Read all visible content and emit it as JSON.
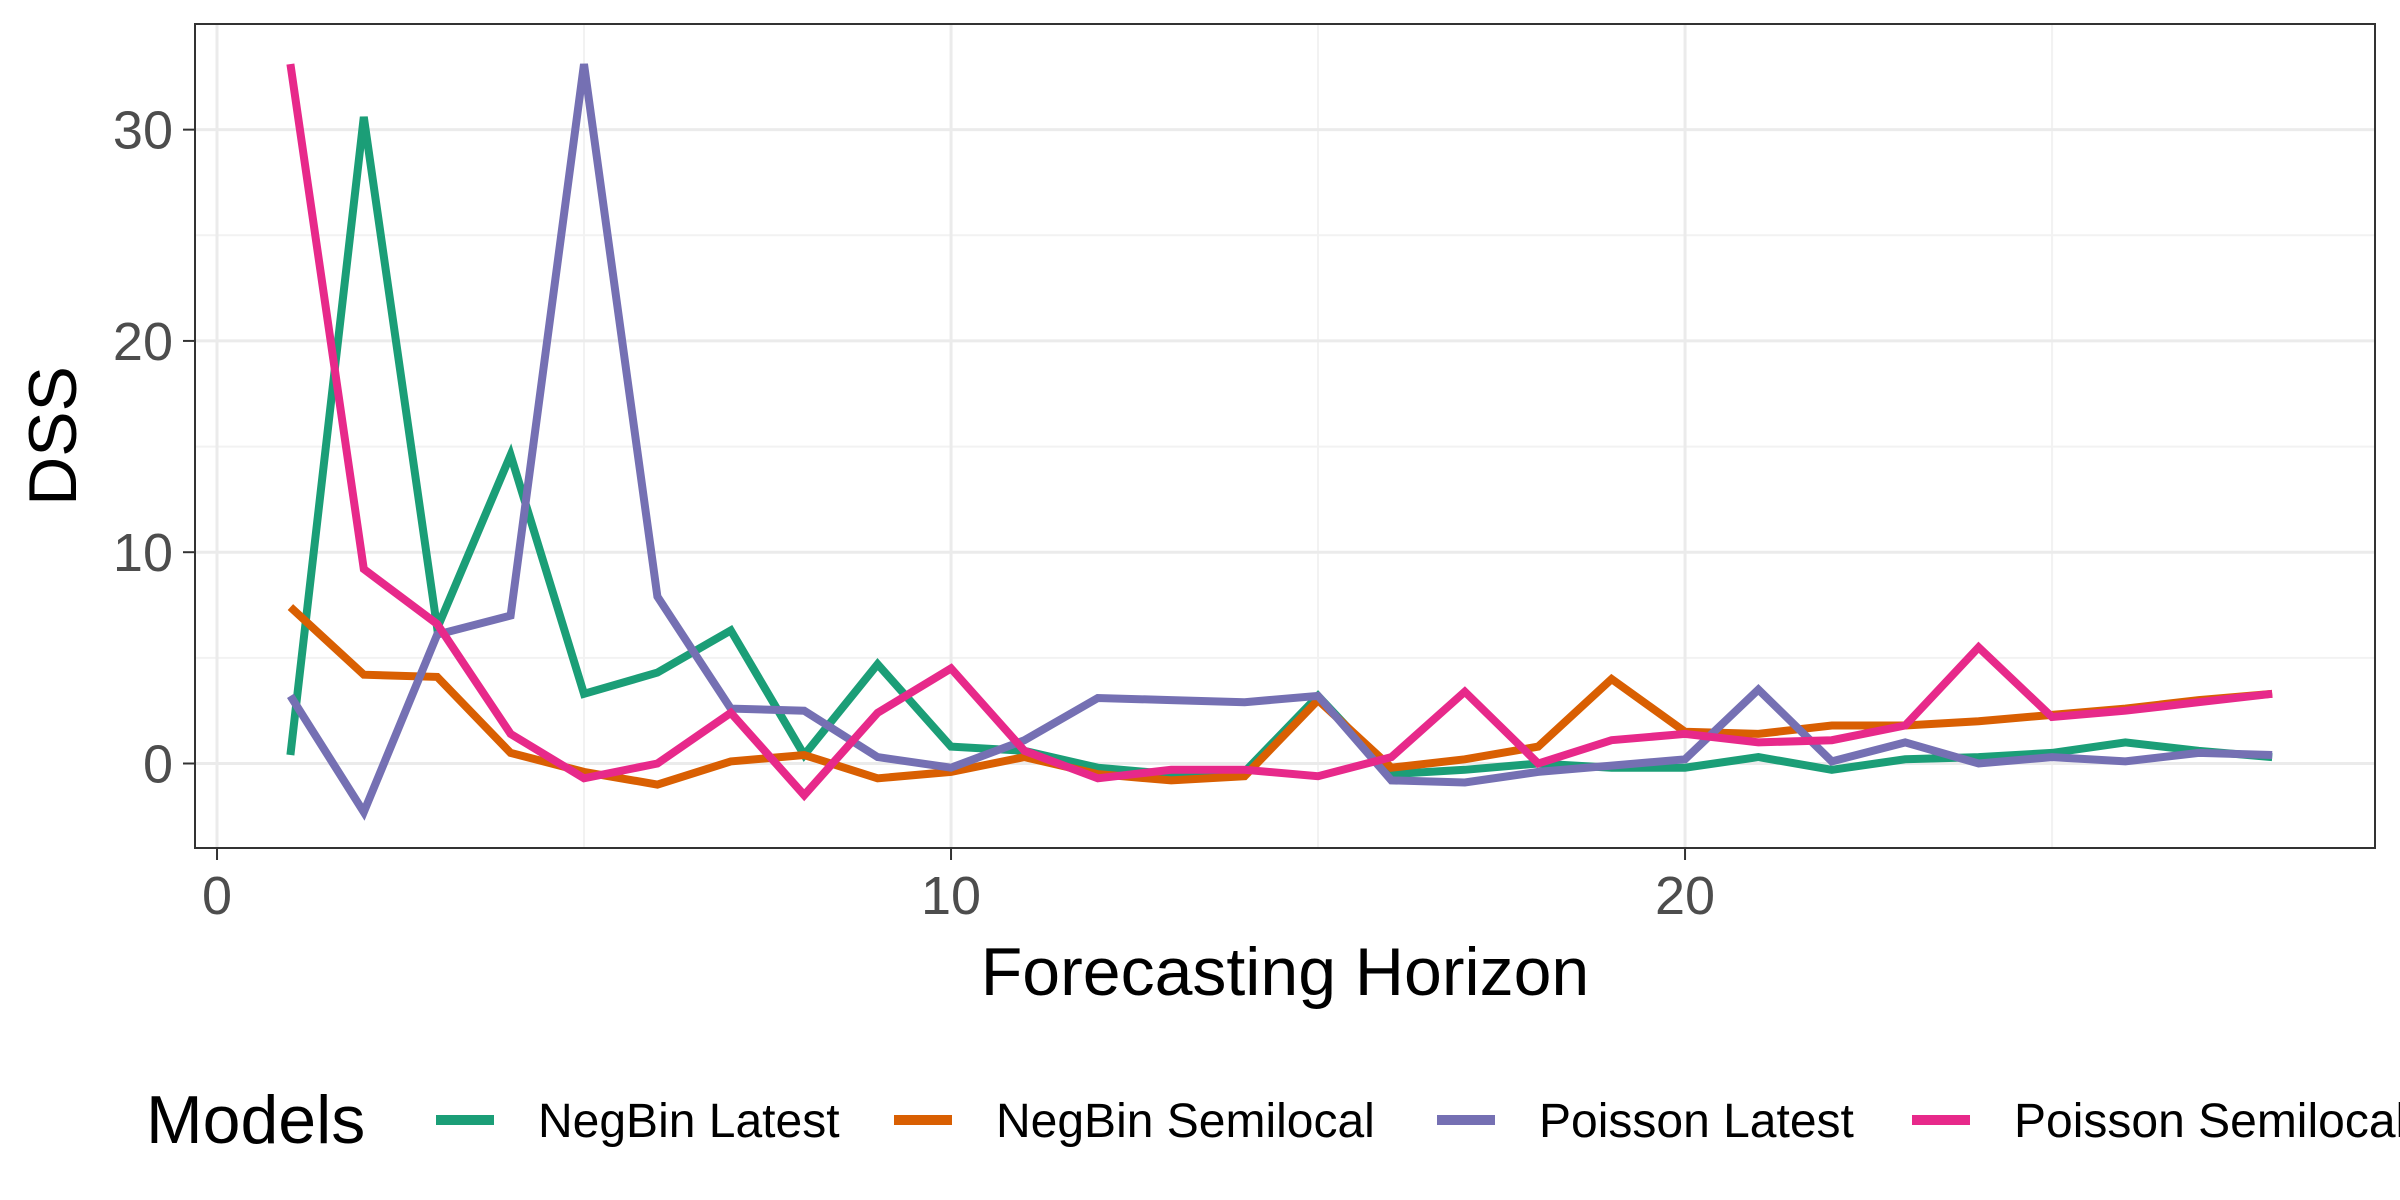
{
  "chart_data": {
    "type": "line",
    "title": "",
    "xlabel": "Forecasting Horizon",
    "ylabel": "DSS",
    "xlim": [
      -0.3,
      29.4
    ],
    "ylim": [
      -4,
      35
    ],
    "x_ticks": [
      0,
      10,
      20
    ],
    "y_ticks": [
      0,
      10,
      20,
      30
    ],
    "grid": true,
    "legend": {
      "title": "Models",
      "position": "bottom"
    },
    "x": [
      1,
      2,
      3,
      4,
      5,
      6,
      7,
      8,
      9,
      10,
      11,
      12,
      13,
      14,
      15,
      16,
      17,
      18,
      19,
      20,
      21,
      22,
      23,
      24,
      25,
      26,
      27,
      28
    ],
    "series": [
      {
        "name": "NegBin Latest",
        "color": "#1b9e77",
        "values": [
          0.4,
          30.6,
          6.4,
          14.6,
          3.3,
          4.3,
          6.3,
          0.4,
          4.7,
          0.8,
          0.6,
          -0.2,
          -0.5,
          -0.4,
          3.2,
          -0.5,
          -0.3,
          0.0,
          -0.2,
          -0.2,
          0.3,
          -0.3,
          0.2,
          0.3,
          0.5,
          1.0,
          0.6,
          0.3
        ]
      },
      {
        "name": "NegBin Semilocal",
        "color": "#d95f02",
        "values": [
          7.4,
          4.2,
          4.1,
          0.5,
          -0.4,
          -1.0,
          0.1,
          0.4,
          -0.7,
          -0.4,
          0.3,
          -0.5,
          -0.8,
          -0.6,
          3.0,
          -0.2,
          0.2,
          0.8,
          4.0,
          1.5,
          1.4,
          1.8,
          1.8,
          2.0,
          2.3,
          2.6,
          3.0,
          3.3
        ]
      },
      {
        "name": "Poisson Latest",
        "color": "#7570b3",
        "values": [
          3.2,
          -2.3,
          6.1,
          7.0,
          33.1,
          7.9,
          2.6,
          2.5,
          0.3,
          -0.2,
          1.1,
          3.1,
          3.0,
          2.9,
          3.2,
          -0.8,
          -0.9,
          -0.4,
          -0.1,
          0.2,
          3.5,
          0.1,
          1.0,
          0.0,
          0.3,
          0.1,
          0.5,
          0.4
        ]
      },
      {
        "name": "Poisson Semilocal",
        "color": "#e7298a",
        "values": [
          33.1,
          9.2,
          6.6,
          1.4,
          -0.7,
          0.0,
          2.4,
          -1.5,
          2.4,
          4.5,
          0.6,
          -0.7,
          -0.3,
          -0.3,
          -0.6,
          0.3,
          3.4,
          0.0,
          1.1,
          1.4,
          1.0,
          1.1,
          1.8,
          5.5,
          2.2,
          2.5,
          2.9,
          3.3
        ]
      }
    ]
  }
}
